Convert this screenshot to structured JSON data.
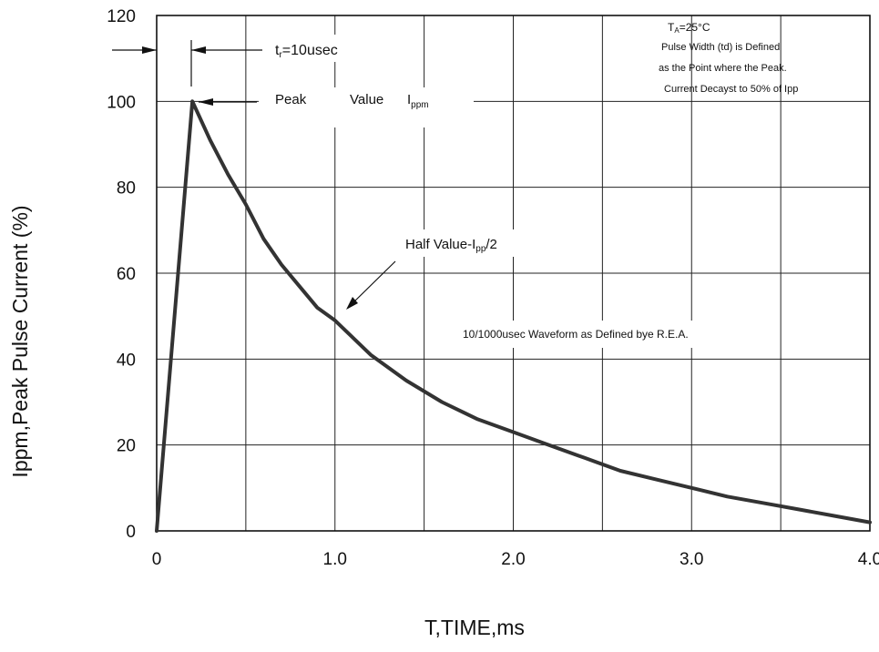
{
  "chart_data": {
    "type": "line",
    "title": "",
    "xlabel": "T,TIME,ms",
    "ylabel": "Ippm,Peak Pulse Current (%)",
    "xlim": [
      0,
      4.0
    ],
    "ylim": [
      0,
      120
    ],
    "grid": true,
    "x_ticks": [
      0,
      0.5,
      1.0,
      1.5,
      2.0,
      2.5,
      3.0,
      3.5,
      4.0
    ],
    "x_tick_labels": [
      {
        "value": 0,
        "label": "0"
      },
      {
        "value": 1.0,
        "label": "1.0"
      },
      {
        "value": 2.0,
        "label": "2.0"
      },
      {
        "value": 3.0,
        "label": "3.0"
      },
      {
        "value": 4.0,
        "label": "4.0"
      }
    ],
    "y_ticks": [
      0,
      20,
      40,
      60,
      80,
      100,
      120
    ],
    "y_tick_labels": [
      "0",
      "20",
      "40",
      "60",
      "80",
      "100",
      "120"
    ],
    "series": [
      {
        "x": [
          0,
          0.2,
          0.3,
          0.4,
          0.5,
          0.6,
          0.7,
          0.8,
          0.9,
          1.0,
          1.2,
          1.4,
          1.6,
          1.8,
          2.0,
          2.2,
          2.4,
          2.6,
          2.8,
          3.0,
          3.2,
          3.4,
          3.6,
          3.8,
          4.0
        ],
        "values": [
          0,
          100,
          91,
          83,
          76,
          68,
          62,
          57,
          52,
          49,
          41,
          35,
          30,
          26,
          23,
          20,
          17,
          14,
          12,
          10,
          8,
          6.5,
          5,
          3.5,
          2
        ]
      }
    ],
    "annotations": {
      "rise_time": {
        "prefix": "t",
        "sub": "r",
        "suffix": "=10usec"
      },
      "peak": {
        "word1": "Peak",
        "word2": "Value",
        "main": "I",
        "sub": "ppm"
      },
      "half_value": {
        "prefix": "Half  Value-I",
        "sub": "pp",
        "suffix": "/2"
      },
      "waveform": "10/1000usec  Waveform as Defined bye R.E.A.",
      "conditions": {
        "temp_main": "T",
        "temp_sub": "A",
        "temp_value": "=25°C",
        "line1": "Pulse    Width (td) is Defined",
        "line2": "as the Point  where the Peak.",
        "line3": "Current  Decayst to 50% of Ipp"
      }
    },
    "colors": {
      "curve": "#333333",
      "grid": "#222222",
      "text": "#111111"
    }
  }
}
